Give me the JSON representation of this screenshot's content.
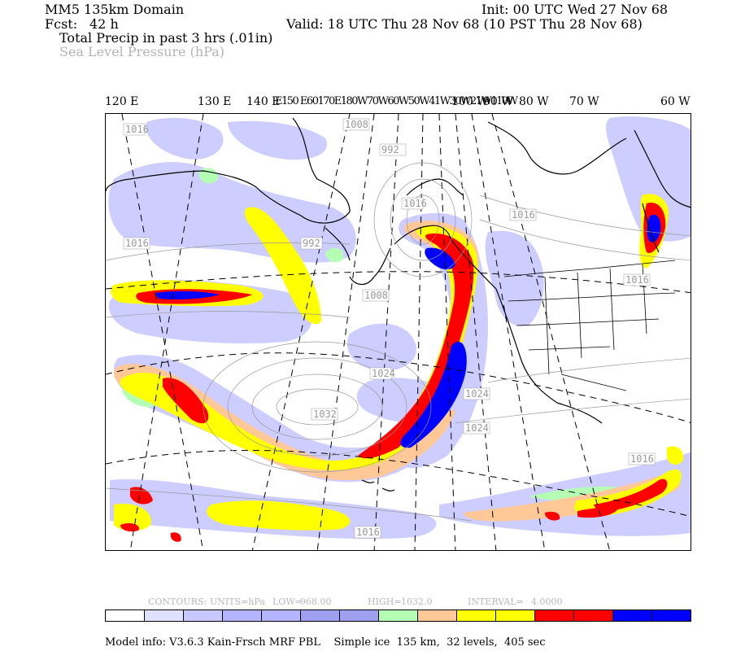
{
  "header": {
    "domain_title": "MM5 135km Domain",
    "init": "Init: 00 UTC Wed 27 Nov 68",
    "fcst_label": "Fcst:",
    "fcst_value": "42 h",
    "valid": "Valid: 18 UTC Thu 28 Nov 68 (10 PST Thu 28 Nov 68)",
    "field_precip": "Total Precip in past 3 hrs (.01in)",
    "field_slp": "Sea Level Pressure (hPa)"
  },
  "lon_labels": [
    "120 E",
    "130 E",
    "140 E",
    "150 E",
    "160 E",
    "170 E",
    "180",
    "170 W",
    "160 W",
    "150 W",
    "140 W",
    "130 W",
    "120 W",
    "110 W",
    "100 W",
    "90 W",
    "80 W",
    "70 W",
    "60 W"
  ],
  "lon_labels_display": {
    "l120e": "120 E",
    "l130e": "130 E",
    "l140e": "140 E",
    "cluster": "E150 E60170E180W70W60W50W41W30W21W110W",
    "l100w": "100 W",
    "l90w": "90 W",
    "l80w": "80 W",
    "l70w": "70 W",
    "l60w": "60 W"
  },
  "pressure_labels": [
    "1016",
    "1008",
    "992",
    "1016",
    "1016",
    "1016",
    "992",
    "1008",
    "1016",
    "1024",
    "1032",
    "1024",
    "1024",
    "1016",
    "1016"
  ],
  "contour_info": {
    "contours": "CONTOURS:",
    "units": "UNITS=hPa",
    "low": "LOW=",
    "low_value": "968.00",
    "high": "HIGH=",
    "high_value": "1032.0",
    "interval": "INTERVAL=",
    "interval_value": "4.0000"
  },
  "legend_colors": [
    "#ffffff",
    "#e0e0ff",
    "#c8c8ff",
    "#b4b4ff",
    "#b4b4ff",
    "#a0a0f0",
    "#a0a0f0",
    "#b4ffb4",
    "#ffc896",
    "#ffff00",
    "#ffff00",
    "#ff0000",
    "#ff0000",
    "#0000ff",
    "#0000ff"
  ],
  "footer": {
    "model_info": "Model info: V3.6.3 Kain-Frsch MRF PBL    Simple ice  135 km,  32 levels,  405 sec"
  }
}
